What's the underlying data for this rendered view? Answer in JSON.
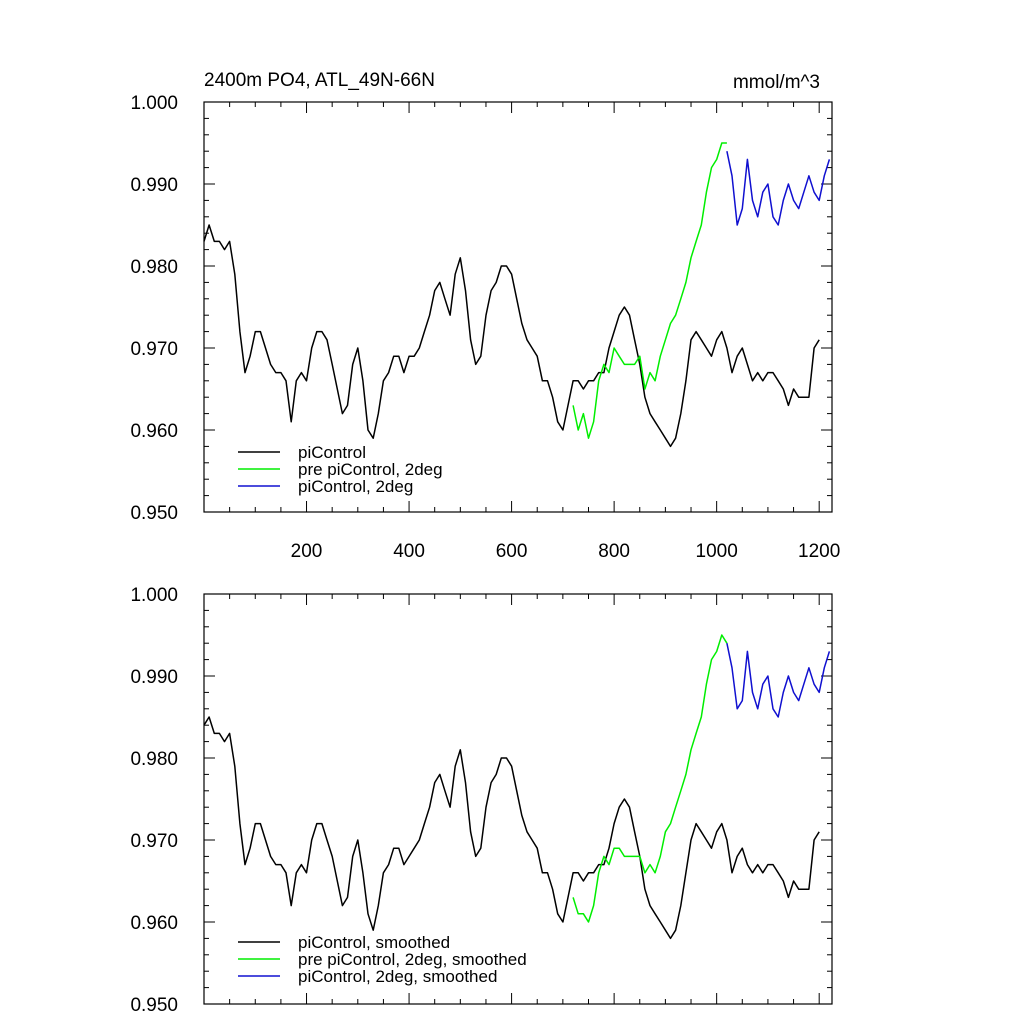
{
  "chart_data": [
    {
      "type": "line",
      "title": "2400m PO4, ATL_49N-66N",
      "units": "mmol/m^3",
      "xlabel": "",
      "ylabel": "",
      "xlim": [
        0,
        1225
      ],
      "ylim": [
        0.95,
        1.0
      ],
      "xticks": [
        200,
        400,
        600,
        800,
        1000,
        1200
      ],
      "yticks": [
        "1.000",
        "0.990",
        "0.980",
        "0.970",
        "0.960",
        "0.950"
      ],
      "legend_position": "bottom-left",
      "series": [
        {
          "name": "piControl",
          "color": "#000000",
          "x": [
            0,
            10,
            20,
            30,
            40,
            50,
            60,
            70,
            80,
            90,
            100,
            110,
            120,
            130,
            140,
            150,
            160,
            170,
            180,
            190,
            200,
            210,
            220,
            230,
            240,
            250,
            260,
            270,
            280,
            290,
            300,
            310,
            320,
            330,
            340,
            350,
            360,
            370,
            380,
            390,
            400,
            410,
            420,
            430,
            440,
            450,
            460,
            470,
            480,
            490,
            500,
            510,
            520,
            530,
            540,
            550,
            560,
            570,
            580,
            590,
            600,
            610,
            620,
            630,
            640,
            650,
            660,
            670,
            680,
            690,
            700,
            710,
            720,
            730,
            740,
            750,
            760,
            770,
            780,
            790,
            800,
            810,
            820,
            830,
            840,
            850,
            860,
            870,
            880,
            890,
            900,
            910,
            920,
            930,
            940,
            950,
            960,
            970,
            980,
            990,
            1000,
            1010,
            1020,
            1030,
            1040,
            1050,
            1060,
            1070,
            1080,
            1090,
            1100,
            1110,
            1120,
            1130,
            1140,
            1150,
            1160,
            1170,
            1180,
            1190,
            1200
          ],
          "y": [
            0.983,
            0.985,
            0.983,
            0.983,
            0.982,
            0.983,
            0.979,
            0.972,
            0.967,
            0.969,
            0.972,
            0.972,
            0.97,
            0.968,
            0.967,
            0.967,
            0.966,
            0.961,
            0.966,
            0.967,
            0.966,
            0.97,
            0.972,
            0.972,
            0.971,
            0.968,
            0.965,
            0.962,
            0.963,
            0.968,
            0.97,
            0.966,
            0.96,
            0.959,
            0.962,
            0.966,
            0.967,
            0.969,
            0.969,
            0.967,
            0.969,
            0.969,
            0.97,
            0.972,
            0.974,
            0.977,
            0.978,
            0.976,
            0.974,
            0.979,
            0.981,
            0.977,
            0.971,
            0.968,
            0.969,
            0.974,
            0.977,
            0.978,
            0.98,
            0.98,
            0.979,
            0.976,
            0.973,
            0.971,
            0.97,
            0.969,
            0.966,
            0.966,
            0.964,
            0.961,
            0.96,
            0.963,
            0.966,
            0.966,
            0.965,
            0.966,
            0.966,
            0.967,
            0.967,
            0.97,
            0.972,
            0.974,
            0.975,
            0.974,
            0.971,
            0.968,
            0.964,
            0.962,
            0.961,
            0.96,
            0.959,
            0.958,
            0.959,
            0.962,
            0.966,
            0.971,
            0.972,
            0.971,
            0.97,
            0.969,
            0.971,
            0.972,
            0.97,
            0.967,
            0.969,
            0.97,
            0.968,
            0.966,
            0.967,
            0.966,
            0.967,
            0.967,
            0.966,
            0.965,
            0.963,
            0.965,
            0.964,
            0.964,
            0.964,
            0.97,
            0.971
          ]
        },
        {
          "name": "pre piControl, 2deg",
          "color": "#00ee00",
          "x": [
            720,
            730,
            740,
            750,
            760,
            770,
            780,
            790,
            800,
            810,
            820,
            830,
            840,
            850,
            860,
            870,
            880,
            890,
            900,
            910,
            920,
            930,
            940,
            950,
            960,
            970,
            980,
            990,
            1000,
            1010,
            1020
          ],
          "y": [
            0.963,
            0.96,
            0.962,
            0.959,
            0.961,
            0.966,
            0.968,
            0.967,
            0.97,
            0.969,
            0.968,
            0.968,
            0.968,
            0.969,
            0.965,
            0.967,
            0.966,
            0.969,
            0.971,
            0.973,
            0.974,
            0.976,
            0.978,
            0.981,
            0.983,
            0.985,
            0.989,
            0.992,
            0.993,
            0.995,
            0.995
          ]
        },
        {
          "name": "piControl, 2deg",
          "color": "#1010d0",
          "x": [
            1020,
            1030,
            1040,
            1050,
            1060,
            1070,
            1080,
            1090,
            1100,
            1110,
            1120,
            1130,
            1140,
            1150,
            1160,
            1170,
            1180,
            1190,
            1200,
            1210,
            1220
          ],
          "y": [
            0.994,
            0.991,
            0.985,
            0.987,
            0.993,
            0.988,
            0.986,
            0.989,
            0.99,
            0.986,
            0.985,
            0.988,
            0.99,
            0.988,
            0.987,
            0.989,
            0.991,
            0.989,
            0.988,
            0.991,
            0.993
          ]
        }
      ]
    },
    {
      "type": "line",
      "title": "",
      "xlabel": "",
      "ylabel": "",
      "xlim": [
        0,
        1225
      ],
      "ylim": [
        0.95,
        1.0
      ],
      "yticks": [
        "1.000",
        "0.990",
        "0.980",
        "0.970",
        "0.960",
        "0.950"
      ],
      "legend_position": "bottom-left",
      "series": [
        {
          "name": "piControl, smoothed",
          "color": "#000000",
          "x": [
            0,
            10,
            20,
            30,
            40,
            50,
            60,
            70,
            80,
            90,
            100,
            110,
            120,
            130,
            140,
            150,
            160,
            170,
            180,
            190,
            200,
            210,
            220,
            230,
            240,
            250,
            260,
            270,
            280,
            290,
            300,
            310,
            320,
            330,
            340,
            350,
            360,
            370,
            380,
            390,
            400,
            410,
            420,
            430,
            440,
            450,
            460,
            470,
            480,
            490,
            500,
            510,
            520,
            530,
            540,
            550,
            560,
            570,
            580,
            590,
            600,
            610,
            620,
            630,
            640,
            650,
            660,
            670,
            680,
            690,
            700,
            710,
            720,
            730,
            740,
            750,
            760,
            770,
            780,
            790,
            800,
            810,
            820,
            830,
            840,
            850,
            860,
            870,
            880,
            890,
            900,
            910,
            920,
            930,
            940,
            950,
            960,
            970,
            980,
            990,
            1000,
            1010,
            1020,
            1030,
            1040,
            1050,
            1060,
            1070,
            1080,
            1090,
            1100,
            1110,
            1120,
            1130,
            1140,
            1150,
            1160,
            1170,
            1180,
            1190,
            1200
          ],
          "y": [
            0.984,
            0.985,
            0.983,
            0.983,
            0.982,
            0.983,
            0.979,
            0.972,
            0.967,
            0.969,
            0.972,
            0.972,
            0.97,
            0.968,
            0.967,
            0.967,
            0.966,
            0.962,
            0.966,
            0.967,
            0.966,
            0.97,
            0.972,
            0.972,
            0.97,
            0.968,
            0.965,
            0.962,
            0.963,
            0.968,
            0.97,
            0.966,
            0.961,
            0.959,
            0.962,
            0.966,
            0.967,
            0.969,
            0.969,
            0.967,
            0.968,
            0.969,
            0.97,
            0.972,
            0.974,
            0.977,
            0.978,
            0.976,
            0.974,
            0.979,
            0.981,
            0.977,
            0.971,
            0.968,
            0.969,
            0.974,
            0.977,
            0.978,
            0.98,
            0.98,
            0.979,
            0.976,
            0.973,
            0.971,
            0.97,
            0.969,
            0.966,
            0.966,
            0.964,
            0.961,
            0.96,
            0.963,
            0.966,
            0.966,
            0.965,
            0.966,
            0.966,
            0.967,
            0.967,
            0.969,
            0.972,
            0.974,
            0.975,
            0.974,
            0.971,
            0.968,
            0.964,
            0.962,
            0.961,
            0.96,
            0.959,
            0.958,
            0.959,
            0.962,
            0.966,
            0.97,
            0.972,
            0.971,
            0.97,
            0.969,
            0.971,
            0.972,
            0.97,
            0.966,
            0.968,
            0.969,
            0.967,
            0.966,
            0.967,
            0.966,
            0.967,
            0.967,
            0.966,
            0.965,
            0.963,
            0.965,
            0.964,
            0.964,
            0.964,
            0.97,
            0.971
          ]
        },
        {
          "name": "pre piControl, 2deg, smoothed",
          "color": "#00ee00",
          "x": [
            720,
            730,
            740,
            750,
            760,
            770,
            780,
            790,
            800,
            810,
            820,
            830,
            840,
            850,
            860,
            870,
            880,
            890,
            900,
            910,
            920,
            930,
            940,
            950,
            960,
            970,
            980,
            990,
            1000,
            1010,
            1020
          ],
          "y": [
            0.963,
            0.961,
            0.961,
            0.96,
            0.962,
            0.966,
            0.968,
            0.967,
            0.969,
            0.969,
            0.968,
            0.968,
            0.968,
            0.968,
            0.966,
            0.967,
            0.966,
            0.968,
            0.971,
            0.972,
            0.974,
            0.976,
            0.978,
            0.981,
            0.983,
            0.985,
            0.989,
            0.992,
            0.993,
            0.995,
            0.994
          ]
        },
        {
          "name": "piControl, 2deg, smoothed",
          "color": "#1010d0",
          "x": [
            1020,
            1030,
            1040,
            1050,
            1060,
            1070,
            1080,
            1090,
            1100,
            1110,
            1120,
            1130,
            1140,
            1150,
            1160,
            1170,
            1180,
            1190,
            1200,
            1210,
            1220
          ],
          "y": [
            0.994,
            0.991,
            0.986,
            0.987,
            0.993,
            0.988,
            0.986,
            0.989,
            0.99,
            0.986,
            0.985,
            0.988,
            0.99,
            0.988,
            0.987,
            0.989,
            0.991,
            0.989,
            0.988,
            0.991,
            0.993
          ]
        }
      ]
    }
  ]
}
